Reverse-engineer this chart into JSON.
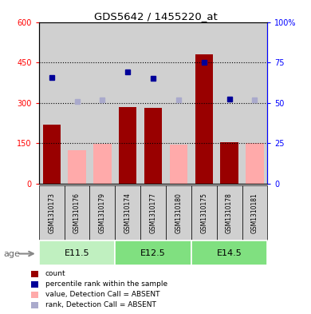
{
  "title": "GDS5642 / 1455220_at",
  "samples": [
    "GSM1310173",
    "GSM1310176",
    "GSM1310179",
    "GSM1310174",
    "GSM1310177",
    "GSM1310180",
    "GSM1310175",
    "GSM1310178",
    "GSM1310181"
  ],
  "bar_values": [
    220,
    null,
    null,
    285,
    280,
    null,
    480,
    155,
    null
  ],
  "absent_bar_values": [
    null,
    125,
    148,
    null,
    null,
    145,
    null,
    null,
    152
  ],
  "rank_present": [
    395,
    null,
    null,
    415,
    390,
    null,
    450,
    315,
    null
  ],
  "rank_absent": [
    null,
    305,
    310,
    null,
    null,
    310,
    null,
    null,
    310
  ],
  "bar_color_present": "#990000",
  "bar_color_absent": "#FFAAAA",
  "dot_color_present": "#000099",
  "dot_color_absent": "#AAAACC",
  "ylim_left": [
    0,
    600
  ],
  "ylim_right": [
    0,
    100
  ],
  "yticks_left": [
    0,
    150,
    300,
    450,
    600
  ],
  "ytick_labels_left": [
    "0",
    "150",
    "300",
    "450",
    "600"
  ],
  "yticks_right": [
    0,
    25,
    50,
    75,
    100
  ],
  "ytick_labels_right": [
    "0",
    "25",
    "50",
    "75",
    "100%"
  ],
  "col_bg_color": "#D0D0D0",
  "plot_bg_color": "#FFFFFF",
  "group_labels": [
    "E11.5",
    "E12.5",
    "E14.5"
  ],
  "group_ranges": [
    [
      0,
      2
    ],
    [
      3,
      5
    ],
    [
      6,
      8
    ]
  ],
  "group_colors": [
    "#C0F0C0",
    "#80E080",
    "#80E080"
  ],
  "age_label": "age",
  "legend": [
    {
      "label": "count",
      "color": "#990000"
    },
    {
      "label": "percentile rank within the sample",
      "color": "#000099"
    },
    {
      "label": "value, Detection Call = ABSENT",
      "color": "#FFAAAA"
    },
    {
      "label": "rank, Detection Call = ABSENT",
      "color": "#AAAACC"
    }
  ]
}
